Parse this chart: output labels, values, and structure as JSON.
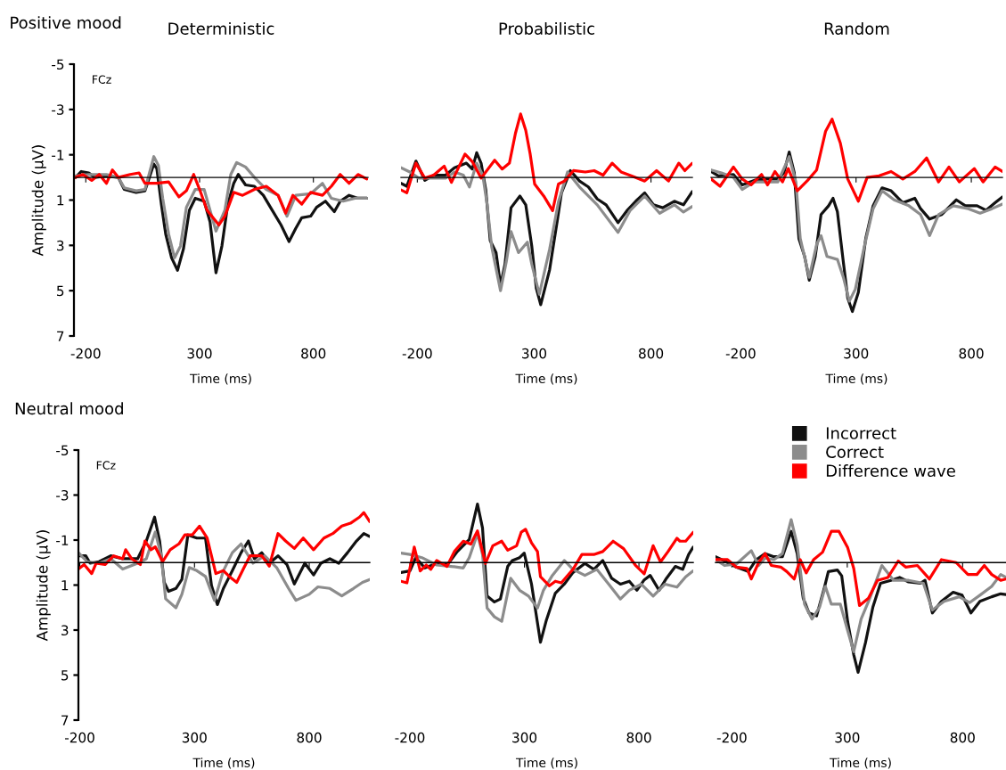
{
  "chart_data": [
    {
      "type": "line",
      "title": "Deterministic",
      "subtitle": "Positive mood",
      "xlabel": "Time (ms)",
      "ylabel": "Amplitude (µV)",
      "annotations": [
        "FCz"
      ],
      "xlim": [
        -252,
        1040
      ],
      "ylim": [
        7,
        -5
      ],
      "xticks": [
        -200,
        300,
        800
      ],
      "yticks": [
        -5,
        -3,
        -1,
        1,
        3,
        5,
        7
      ],
      "series": [
        {
          "color": "#111111",
          "x": [
            -245,
            -220,
            -187,
            -161,
            -109,
            -57,
            -31,
            21,
            60,
            99,
            112,
            132,
            151,
            177,
            203,
            229,
            255,
            281,
            320,
            346,
            372,
            398,
            424,
            450,
            470,
            502,
            541,
            580,
            619,
            658,
            693,
            723,
            749,
            788,
            814,
            853,
            892,
            918,
            957,
            996,
            1035
          ],
          "values": [
            0,
            -0.26,
            -0.2,
            0,
            -0.07,
            0,
            0.53,
            0.66,
            0.59,
            -0.59,
            -0.39,
            1.18,
            2.5,
            3.55,
            4.1,
            3.16,
            1.45,
            0.92,
            1.05,
            1.97,
            4.21,
            3.03,
            1.18,
            0.26,
            -0.13,
            0.33,
            0.39,
            0.79,
            1.45,
            2.1,
            2.83,
            2.24,
            1.78,
            1.71,
            1.32,
            1.05,
            1.51,
            1.05,
            0.79,
            0.92,
            0.92
          ]
        },
        {
          "color": "#8c8c8c",
          "x": [
            -245,
            -187,
            -109,
            -57,
            -31,
            21,
            60,
            99,
            119,
            138,
            164,
            190,
            216,
            242,
            281,
            320,
            346,
            372,
            411,
            437,
            463,
            502,
            541,
            593,
            645,
            684,
            723,
            788,
            840,
            879,
            931,
            983,
            1035
          ],
          "values": [
            -0.07,
            -0.13,
            -0.13,
            0,
            0.46,
            0.59,
            0.53,
            -0.92,
            -0.53,
            0.92,
            2.5,
            3.55,
            3.03,
            1.32,
            0.53,
            0.53,
            1.45,
            2.37,
            1.45,
            -0.13,
            -0.66,
            -0.46,
            0,
            0.53,
            0.79,
            1.71,
            0.79,
            0.72,
            0.26,
            0.92,
            1.05,
            0.92,
            0.92
          ]
        },
        {
          "color": "#ff0000",
          "x": [
            -245,
            -213,
            -174,
            -141,
            -109,
            -83,
            -57,
            -5,
            34,
            60,
            112,
            164,
            209,
            242,
            274,
            300,
            333,
            385,
            411,
            450,
            489,
            541,
            593,
            645,
            678,
            710,
            749,
            788,
            840,
            879,
            918,
            957,
            996,
            1035
          ],
          "values": [
            0,
            -0.13,
            0.13,
            -0.13,
            0.26,
            -0.33,
            0,
            -0.13,
            -0.2,
            0.26,
            0.26,
            0.2,
            0.86,
            0.59,
            -0.13,
            0.53,
            1.45,
            2.1,
            1.71,
            0.66,
            0.79,
            0.53,
            0.39,
            0.79,
            1.58,
            0.79,
            1.18,
            0.66,
            0.79,
            0.39,
            -0.13,
            0.26,
            -0.13,
            0.07
          ]
        }
      ]
    },
    {
      "type": "line",
      "title": "Probabilistic",
      "xlabel": "Time (ms)",
      "xlim": [
        -270,
        977
      ],
      "ylim": [
        7,
        -5
      ],
      "xticks": [
        -200,
        300,
        800
      ],
      "tick_labels": "x",
      "series": [
        {
          "color": "#111111",
          "x": [
            -270,
            -245,
            -206,
            -168,
            -130,
            -79,
            -41,
            10,
            35,
            54,
            73,
            93,
            112,
            137,
            156,
            175,
            201,
            239,
            264,
            290,
            309,
            328,
            366,
            398,
            417,
            455,
            494,
            532,
            570,
            608,
            659,
            697,
            735,
            773,
            811,
            850,
            900,
            939,
            977
          ],
          "values": [
            0.26,
            0.39,
            -0.72,
            0.13,
            -0.1,
            -0.1,
            -0.43,
            -0.63,
            -0.37,
            -1.09,
            -0.63,
            0.55,
            2.79,
            3.32,
            4.76,
            3.84,
            1.34,
            0.82,
            1.21,
            3.05,
            4.89,
            5.62,
            4.08,
            1.97,
            0.68,
            -0.3,
            0.16,
            0.42,
            0.95,
            1.21,
            2.0,
            1.47,
            1.05,
            0.68,
            1.21,
            1.34,
            1.05,
            1.21,
            0.62
          ]
        },
        {
          "color": "#8c8c8c",
          "x": [
            -270,
            -232,
            -194,
            -143,
            -79,
            -41,
            -3,
            23,
            54,
            80,
            99,
            118,
            156,
            181,
            201,
            233,
            271,
            290,
            322,
            366,
            404,
            443,
            494,
            570,
            659,
            710,
            773,
            837,
            900,
            939,
            977
          ],
          "values": [
            -0.43,
            -0.24,
            0.03,
            0.03,
            0.03,
            -0.24,
            -0.1,
            0.42,
            -0.63,
            -0.1,
            1.21,
            3.05,
            5.0,
            3.71,
            2.39,
            3.32,
            2.86,
            3.84,
            5.16,
            3.18,
            1.08,
            -0.24,
            0.42,
            1.21,
            2.43,
            1.47,
            0.82,
            1.58,
            1.21,
            1.53,
            1.28
          ]
        },
        {
          "color": "#ff0000",
          "x": [
            -270,
            -245,
            -206,
            -168,
            -130,
            -85,
            -54,
            4,
            35,
            73,
            131,
            163,
            194,
            220,
            242,
            264,
            283,
            302,
            341,
            379,
            404,
            430,
            468,
            519,
            557,
            595,
            634,
            672,
            723,
            773,
            824,
            875,
            919,
            945,
            977
          ],
          "values": [
            0.55,
            0.68,
            -0.63,
            0.03,
            -0.1,
            -0.5,
            0.22,
            -1.03,
            -0.7,
            0.03,
            -0.76,
            -0.37,
            -0.63,
            -1.95,
            -2.8,
            -2.08,
            -1.03,
            0.29,
            0.82,
            1.47,
            0.29,
            0.16,
            -0.3,
            -0.24,
            -0.3,
            -0.1,
            -0.63,
            -0.24,
            -0.04,
            0.16,
            -0.3,
            0.16,
            -0.63,
            -0.3,
            -0.63
          ]
        }
      ]
    },
    {
      "type": "line",
      "title": "Random",
      "xlabel": "Time (ms)",
      "xlim": [
        -329,
        935
      ],
      "ylim": [
        7,
        -5
      ],
      "xticks": [
        -200,
        300,
        800
      ],
      "tick_labels": "x",
      "series": [
        {
          "color": "#111111",
          "x": [
            -329,
            -297,
            -232,
            -194,
            -142,
            -90,
            -39,
            -13,
            10,
            32,
            52,
            77,
            97,
            123,
            148,
            181,
            200,
            219,
            245,
            264,
            284,
            310,
            342,
            374,
            413,
            452,
            503,
            555,
            580,
            619,
            671,
            735,
            774,
            825,
            864,
            903,
            935
          ],
          "values": [
            -0.26,
            -0.07,
            -0.13,
            0.33,
            0.13,
            0.07,
            0.07,
            -0.2,
            -1.12,
            -0.2,
            2.7,
            3.49,
            4.54,
            3.49,
            1.64,
            1.25,
            0.92,
            1.51,
            3.75,
            5.33,
            5.92,
            5.07,
            2.7,
            1.25,
            0.46,
            0.59,
            1.12,
            0.92,
            1.38,
            1.84,
            1.64,
            0.99,
            1.25,
            1.25,
            1.45,
            1.12,
            0.86
          ]
        },
        {
          "color": "#8c8c8c",
          "x": [
            -329,
            -284,
            -232,
            -194,
            -142,
            -90,
            -39,
            10,
            39,
            58,
            97,
            129,
            148,
            174,
            219,
            245,
            271,
            297,
            335,
            374,
            413,
            465,
            529,
            580,
            619,
            658,
            722,
            787,
            838,
            890,
            935
          ],
          "values": [
            -0.33,
            -0.2,
            0,
            0.53,
            0.2,
            0.2,
            0.2,
            -0.92,
            0.2,
            2.7,
            4.41,
            2.96,
            2.57,
            3.49,
            3.62,
            4.41,
            5.46,
            4.93,
            3.09,
            1.38,
            0.59,
            0.99,
            1.25,
            1.64,
            2.57,
            1.64,
            1.25,
            1.38,
            1.58,
            1.38,
            1.18
          ]
        },
        {
          "color": "#ff0000",
          "x": [
            -329,
            -290,
            -232,
            -194,
            -155,
            -110,
            -84,
            -52,
            -19,
            6,
            45,
            90,
            129,
            168,
            196,
            232,
            264,
            310,
            348,
            400,
            452,
            503,
            555,
            606,
            658,
            703,
            748,
            813,
            851,
            903,
            935
          ],
          "values": [
            0.07,
            0.39,
            -0.46,
            0.07,
            0.33,
            -0.13,
            0.33,
            -0.26,
            0.2,
            -0.39,
            0.59,
            0.13,
            -0.33,
            -2.04,
            -2.57,
            -1.51,
            0.07,
            1.05,
            0,
            -0.07,
            -0.26,
            0.07,
            -0.26,
            -0.86,
            0.2,
            -0.46,
            0.2,
            -0.39,
            0.2,
            -0.46,
            -0.26
          ]
        }
      ]
    },
    {
      "type": "line",
      "subtitle": "Neutral mood",
      "xlabel": "Time (ms)",
      "ylabel": "Amplitude (µV)",
      "annotations": [
        "FCz"
      ],
      "xlim": [
        -206,
        1064
      ],
      "ylim": [
        7,
        -5
      ],
      "xticks": [
        -200,
        300,
        800
      ],
      "yticks": [
        -5,
        -3,
        -1,
        1,
        3,
        5,
        7
      ],
      "series": [
        {
          "color": "#111111",
          "x": [
            -206,
            -174,
            -155,
            -116,
            -65,
            -13,
            52,
            90,
            126,
            148,
            168,
            187,
            219,
            245,
            271,
            310,
            348,
            374,
            400,
            426,
            465,
            503,
            535,
            561,
            593,
            626,
            664,
            703,
            735,
            781,
            819,
            851,
            890,
            929,
            967,
            1006,
            1038,
            1064
          ],
          "values": [
            -0.3,
            -0.3,
            0.03,
            -0.04,
            -0.3,
            -0.17,
            -0.17,
            -0.96,
            -2.02,
            -0.96,
            0.88,
            1.28,
            1.15,
            0.75,
            -1.23,
            -1.09,
            -1.09,
            1.02,
            1.87,
            1.15,
            0.36,
            -0.44,
            -0.96,
            -0.17,
            -0.44,
            0.03,
            -0.3,
            0.09,
            0.95,
            0.03,
            0.55,
            0.03,
            -0.17,
            0.03,
            -0.44,
            -0.96,
            -1.29,
            -1.16
          ]
        },
        {
          "color": "#8c8c8c",
          "x": [
            -206,
            -168,
            -116,
            -65,
            -13,
            52,
            90,
            129,
            155,
            174,
            219,
            245,
            277,
            310,
            348,
            387,
            426,
            465,
            503,
            555,
            606,
            658,
            710,
            742,
            800,
            838,
            890,
            942,
            993,
            1032,
            1064
          ],
          "values": [
            -0.44,
            -0.04,
            0.03,
            -0.17,
            0.29,
            0.03,
            -0.17,
            -1.36,
            -0.3,
            1.61,
            2.01,
            1.41,
            0.22,
            0.36,
            0.62,
            1.68,
            0.36,
            -0.44,
            -0.83,
            0.03,
            -0.3,
            0.22,
            1.15,
            1.68,
            1.41,
            1.08,
            1.15,
            1.48,
            1.15,
            0.88,
            0.75
          ]
        },
        {
          "color": "#ff0000",
          "x": [
            -206,
            -181,
            -148,
            -129,
            -90,
            -52,
            -13,
            0,
            26,
            64,
            84,
            110,
            129,
            161,
            194,
            232,
            258,
            290,
            322,
            355,
            393,
            426,
            452,
            484,
            516,
            542,
            567,
            593,
            626,
            664,
            697,
            735,
            774,
            819,
            864,
            903,
            942,
            980,
            1019,
            1038,
            1064
          ],
          "values": [
            0.29,
            0.09,
            0.49,
            0.03,
            0.09,
            -0.3,
            -0.17,
            -0.57,
            -0.17,
            0.09,
            -0.96,
            -0.57,
            -0.7,
            -0.04,
            -0.57,
            -0.83,
            -1.23,
            -1.23,
            -1.62,
            -1.09,
            0.49,
            0.36,
            0.62,
            0.88,
            0.22,
            -0.3,
            -0.3,
            -0.3,
            0.16,
            -1.29,
            -0.96,
            -0.63,
            -1.09,
            -0.57,
            -1.09,
            -1.29,
            -1.62,
            -1.75,
            -2.02,
            -2.22,
            -1.82
          ]
        }
      ]
    },
    {
      "type": "line",
      "xlabel": "Time (ms)",
      "xlim": [
        -239,
        1037
      ],
      "ylim": [
        7,
        -5
      ],
      "xticks": [
        -200,
        300,
        800
      ],
      "tick_labels": "x",
      "series": [
        {
          "color": "#111111",
          "x": [
            -239,
            -200,
            -174,
            -135,
            -83,
            -32,
            7,
            59,
            95,
            117,
            137,
            169,
            195,
            227,
            247,
            279,
            299,
            331,
            357,
            370,
            396,
            435,
            474,
            512,
            564,
            603,
            642,
            681,
            719,
            758,
            791,
            823,
            849,
            888,
            920,
            959,
            991,
            1017,
            1037
          ],
          "values": [
            0.44,
            0.37,
            -0.22,
            0.24,
            0.04,
            0.04,
            -0.49,
            -1.02,
            -2.6,
            -1.54,
            1.49,
            1.75,
            1.62,
            0.17,
            -0.09,
            -0.22,
            -0.42,
            0.96,
            2.68,
            3.54,
            2.55,
            1.36,
            0.96,
            0.44,
            0.04,
            0.3,
            -0.09,
            0.7,
            0.96,
            0.83,
            1.23,
            0.77,
            0.57,
            1.23,
            0.7,
            0.17,
            0.3,
            -0.36,
            -0.69
          ]
        },
        {
          "color": "#8c8c8c",
          "x": [
            -239,
            -200,
            -148,
            -83,
            -19,
            33,
            59,
            95,
            117,
            137,
            169,
            201,
            240,
            279,
            318,
            357,
            383,
            422,
            474,
            512,
            564,
            616,
            668,
            719,
            758,
            810,
            862,
            914,
            966,
            1004,
            1037
          ],
          "values": [
            -0.42,
            -0.36,
            -0.22,
            0.11,
            0.17,
            0.24,
            -0.22,
            -1.28,
            -0.36,
            2.02,
            2.41,
            2.61,
            0.7,
            1.23,
            1.49,
            2.02,
            1.23,
            0.57,
            -0.09,
            0.3,
            0.57,
            0.3,
            0.96,
            1.62,
            1.23,
            0.96,
            1.49,
            0.96,
            1.09,
            0.63,
            0.37
          ]
        },
        {
          "color": "#ff0000",
          "x": [
            -239,
            -213,
            -181,
            -155,
            -129,
            -109,
            -83,
            -38,
            -6,
            33,
            66,
            95,
            130,
            162,
            201,
            227,
            266,
            286,
            305,
            331,
            357,
            370,
            409,
            435,
            461,
            512,
            551,
            603,
            642,
            687,
            733,
            784,
            823,
            862,
            894,
            927,
            966,
            979,
            1004,
            1037
          ],
          "values": [
            0.83,
            0.9,
            -0.69,
            0.37,
            0.11,
            0.3,
            -0.09,
            0.17,
            -0.49,
            -0.95,
            -0.82,
            -1.41,
            0.04,
            -0.75,
            -0.95,
            -0.55,
            -0.75,
            -1.35,
            -1.48,
            -0.88,
            -0.49,
            0.63,
            1.03,
            0.83,
            0.9,
            0.3,
            -0.36,
            -0.36,
            -0.49,
            -0.95,
            -0.62,
            0.11,
            0.5,
            -0.75,
            -0.03,
            -0.49,
            -1.08,
            -0.95,
            -0.95,
            -1.35
          ]
        }
      ]
    },
    {
      "type": "line",
      "xlabel": "Time (ms)",
      "xlim": [
        -271,
        988
      ],
      "ylim": [
        7,
        -5
      ],
      "xticks": [
        -200,
        300,
        800
      ],
      "tick_labels": "x",
      "legend": "top right",
      "series": [
        {
          "name": "Incorrect",
          "color": "#111111",
          "x": [
            -271,
            -232,
            -181,
            -129,
            -94,
            -56,
            -18,
            19,
            57,
            83,
            109,
            134,
            167,
            199,
            218,
            257,
            276,
            302,
            328,
            347,
            379,
            411,
            444,
            489,
            527,
            566,
            617,
            637,
            669,
            708,
            759,
            798,
            836,
            875,
            926,
            965,
            988
          ],
          "values": [
            -0.26,
            -0.07,
            0.2,
            0.4,
            -0.13,
            -0.4,
            -0.26,
            -0.26,
            -1.39,
            -0.4,
            1.58,
            2.24,
            2.37,
            1.19,
            0.4,
            0.33,
            0.59,
            2.64,
            4.09,
            4.88,
            3.56,
            1.98,
            0.92,
            0.79,
            0.66,
            0.86,
            0.92,
            0.79,
            2.24,
            1.72,
            1.32,
            1.45,
            2.24,
            1.72,
            1.52,
            1.39,
            1.42
          ]
        },
        {
          "name": "Correct",
          "color": "#8c8c8c",
          "x": [
            -271,
            -232,
            -181,
            -116,
            -84,
            -56,
            -18,
            19,
            57,
            83,
            115,
            147,
            180,
            205,
            231,
            270,
            302,
            328,
            360,
            398,
            450,
            501,
            566,
            630,
            669,
            720,
            785,
            830,
            875,
            926,
            965,
            988
          ],
          "values": [
            -0.13,
            0.13,
            0.07,
            -0.53,
            0.13,
            -0.2,
            -0.13,
            -0.4,
            -1.91,
            -0.79,
            1.85,
            2.51,
            1.98,
            1.06,
            1.85,
            1.85,
            3.03,
            3.96,
            2.51,
            1.58,
            0.13,
            0.79,
            0.79,
            0.92,
            2.11,
            1.72,
            1.52,
            1.78,
            1.45,
            1.06,
            0.53,
            0.66
          ]
        },
        {
          "name": "Difference wave",
          "color": "#ff0000",
          "x": [
            -271,
            -219,
            -181,
            -135,
            -116,
            -84,
            -56,
            -29,
            12,
            38,
            70,
            96,
            122,
            154,
            193,
            231,
            264,
            302,
            328,
            353,
            392,
            431,
            476,
            521,
            553,
            604,
            656,
            708,
            772,
            823,
            862,
            894,
            926,
            965,
            988
          ],
          "values": [
            -0.13,
            -0.13,
            0.2,
            0.26,
            0.73,
            0,
            -0.4,
            0.13,
            0.2,
            0.4,
            0.73,
            -0.13,
            0.46,
            -0.13,
            -0.46,
            -1.39,
            -1.39,
            -0.66,
            0.26,
            1.91,
            1.58,
            0.79,
            0.66,
            -0.07,
            0.2,
            0.13,
            0.73,
            -0.13,
            0,
            0.53,
            0.53,
            0.13,
            0.53,
            0.79,
            0.73
          ]
        }
      ]
    }
  ]
}
